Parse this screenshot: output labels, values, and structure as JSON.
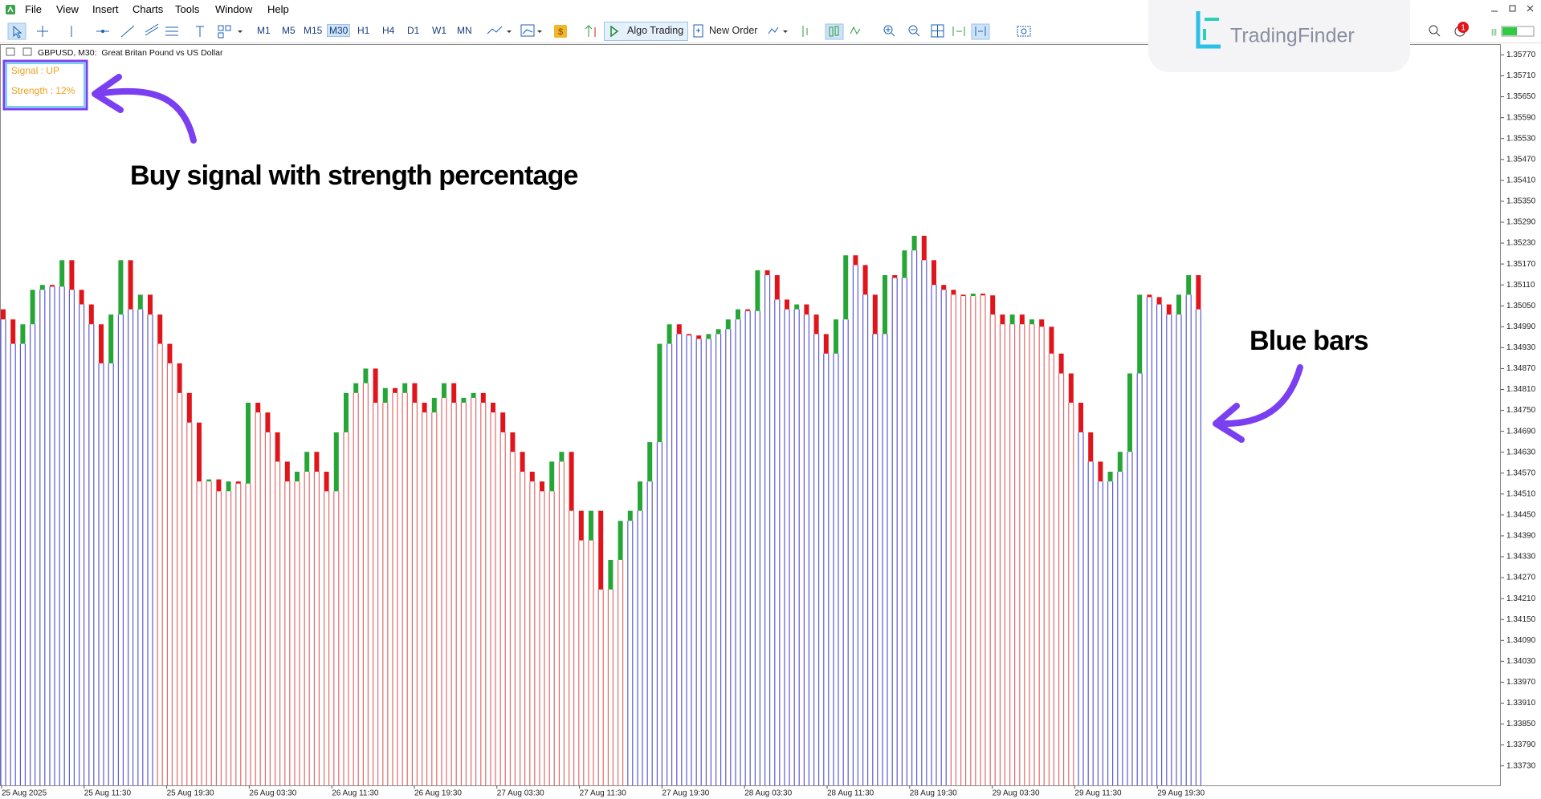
{
  "menu": [
    "File",
    "View",
    "Insert",
    "Charts",
    "Tools",
    "Window",
    "Help"
  ],
  "toolbar": {
    "timeframes": [
      "M1",
      "M5",
      "M15",
      "M30",
      "H1",
      "H4",
      "D1",
      "W1",
      "MN"
    ],
    "selected_timeframe": "M30",
    "algo_trading": "Algo Trading",
    "new_order": "New Order",
    "notifications": 1
  },
  "logo": "TradingFinder",
  "chart_data": {
    "type": "candlestick",
    "title": "GBPUSD, M30:  Great Britan Pound vs US Dollar",
    "x_labels": [
      "25 Aug 2025",
      "25 Aug 11:30",
      "25 Aug 19:30",
      "26 Aug 03:30",
      "26 Aug 11:30",
      "26 Aug 19:30",
      "27 Aug 03:30",
      "27 Aug 11:30",
      "27 Aug 19:30",
      "28 Aug 03:30",
      "28 Aug 11:30",
      "28 Aug 19:30",
      "29 Aug 03:30",
      "29 Aug 11:30",
      "29 Aug 19:30"
    ],
    "open_first": 1.3504,
    "close": [
      1.35011,
      1.34941,
      1.34997,
      1.35096,
      1.3511,
      1.35105,
      1.35181,
      1.35096,
      1.35054,
      1.34997,
      1.34885,
      1.35025,
      1.35181,
      1.3504,
      1.35082,
      1.35025,
      1.34941,
      1.34885,
      1.348,
      1.34715,
      1.34546,
      1.34552,
      1.34518,
      1.34546,
      1.3454,
      1.34772,
      1.34744,
      1.34687,
      1.34603,
      1.34546,
      1.34574,
      1.34631,
      1.34574,
      1.34518,
      1.34687,
      1.348,
      1.34828,
      1.3487,
      1.34772,
      1.34814,
      1.348,
      1.34828,
      1.34772,
      1.34744,
      1.34786,
      1.34828,
      1.34772,
      1.34786,
      1.348,
      1.34772,
      1.34744,
      1.34687,
      1.34631,
      1.34574,
      1.34546,
      1.34518,
      1.34603,
      1.34631,
      1.34462,
      1.34377,
      1.34462,
      1.34236,
      1.34321,
      1.34433,
      1.34462,
      1.34546,
      1.34659,
      1.34941,
      1.34997,
      1.34969,
      1.34965,
      1.34955,
      1.34969,
      1.34983,
      1.35011,
      1.3504,
      1.35035,
      1.35152,
      1.35138,
      1.35068,
      1.3504,
      1.35054,
      1.35025,
      1.34969,
      1.34913,
      1.35011,
      1.35195,
      1.35167,
      1.35082,
      1.34969,
      1.35138,
      1.3513,
      1.35209,
      1.35251,
      1.35181,
      1.3511,
      1.35096,
      1.35082,
      1.35078,
      1.35085,
      1.3508,
      1.35025,
      1.34997,
      1.35025,
      1.34997,
      1.35011,
      1.3499,
      1.34913,
      1.34856,
      1.34772,
      1.34687,
      1.34603,
      1.34546,
      1.34574,
      1.34631,
      1.34856,
      1.35082,
      1.35075,
      1.35054,
      1.35025,
      1.35082,
      1.35138,
      1.3504
    ],
    "trend": [
      "up",
      "up",
      "up",
      "up",
      "up",
      "up",
      "up",
      "up",
      "up",
      "up",
      "up",
      "up",
      "up",
      "up",
      "up",
      "up",
      "down",
      "down",
      "down",
      "down",
      "down",
      "down",
      "down",
      "down",
      "down",
      "down",
      "down",
      "down",
      "down",
      "down",
      "down",
      "down",
      "down",
      "down",
      "down",
      "down",
      "down",
      "down",
      "down",
      "down",
      "down",
      "down",
      "down",
      "down",
      "down",
      "down",
      "down",
      "down",
      "down",
      "down",
      "down",
      "down",
      "down",
      "down",
      "down",
      "down",
      "down",
      "down",
      "down",
      "down",
      "down",
      "down",
      "down",
      "down",
      "up",
      "up",
      "up",
      "up",
      "up",
      "up",
      "up",
      "up",
      "up",
      "up",
      "up",
      "up",
      "up",
      "up",
      "up",
      "up",
      "up",
      "up",
      "up",
      "up",
      "up",
      "up",
      "up",
      "up",
      "up",
      "up",
      "up",
      "up",
      "up",
      "up",
      "up",
      "up",
      "up",
      "down",
      "down",
      "down",
      "down",
      "down",
      "down",
      "down",
      "down",
      "down",
      "down",
      "down",
      "down",
      "down",
      "up",
      "up",
      "up",
      "up",
      "up",
      "up",
      "up",
      "up",
      "up",
      "up",
      "up",
      "up",
      "up"
    ],
    "trend_colors": {
      "up": "#5b5bd0",
      "down": "#e06a6a"
    },
    "candle_colors": {
      "bull": "#26a637",
      "bear": "#e0151b"
    },
    "ylim": [
      1.33674,
      1.35801
    ],
    "yticks": [
      {
        "value": 1.3373,
        "label": "1.33730"
      },
      {
        "value": 1.3379,
        "label": "1.33790"
      },
      {
        "value": 1.3385,
        "label": "1.33850"
      },
      {
        "value": 1.3391,
        "label": "1.33910"
      },
      {
        "value": 1.3397,
        "label": "1.33970"
      },
      {
        "value": 1.3403,
        "label": "1.34030"
      },
      {
        "value": 1.3409,
        "label": "1.34090"
      },
      {
        "value": 1.3415,
        "label": "1.34150"
      },
      {
        "value": 1.3421,
        "label": "1.34210"
      },
      {
        "value": 1.3427,
        "label": "1.34270"
      },
      {
        "value": 1.3433,
        "label": "1.34330"
      },
      {
        "value": 1.3439,
        "label": "1.34390"
      },
      {
        "value": 1.3445,
        "label": "1.34450"
      },
      {
        "value": 1.3451,
        "label": "1.34510"
      },
      {
        "value": 1.3457,
        "label": "1.34570"
      },
      {
        "value": 1.3463,
        "label": "1.34630"
      },
      {
        "value": 1.3469,
        "label": "1.34690"
      },
      {
        "value": 1.3475,
        "label": "1.34750"
      },
      {
        "value": 1.3481,
        "label": "1.34810"
      },
      {
        "value": 1.3487,
        "label": "1.34870"
      },
      {
        "value": 1.3493,
        "label": "1.34930"
      },
      {
        "value": 1.3499,
        "label": "1.34990"
      },
      {
        "value": 1.3505,
        "label": "1.35050"
      },
      {
        "value": 1.3511,
        "label": "1.35110"
      },
      {
        "value": 1.3517,
        "label": "1.35170"
      },
      {
        "value": 1.3523,
        "label": "1.35230"
      },
      {
        "value": 1.3529,
        "label": "1.35290"
      },
      {
        "value": 1.3535,
        "label": "1.35350"
      },
      {
        "value": 1.3541,
        "label": "1.35410"
      },
      {
        "value": 1.3547,
        "label": "1.35470"
      },
      {
        "value": 1.3553,
        "label": "1.35530"
      },
      {
        "value": 1.3559,
        "label": "1.35590"
      },
      {
        "value": 1.3565,
        "label": "1.35650"
      },
      {
        "value": 1.3571,
        "label": "1.35710"
      },
      {
        "value": 1.3577,
        "label": "1.35770"
      }
    ],
    "indicator": {
      "signal": "Signal : UP",
      "strength": "Strength : 12%"
    },
    "annotations": [
      "Buy signal with strength percentage",
      "Blue bars"
    ]
  }
}
